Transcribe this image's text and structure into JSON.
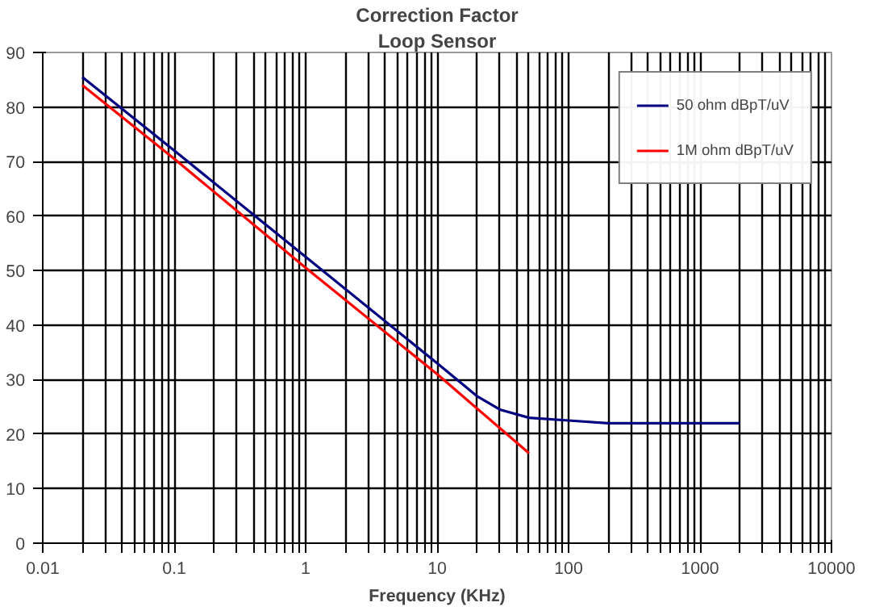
{
  "chart_data": {
    "type": "line",
    "title": "Correction Factor",
    "subtitle": "Loop Sensor",
    "xlabel": "Frequency (KHz)",
    "log": "x",
    "grid": true,
    "legend": "top right",
    "line_style": "solid",
    "marker": "none",
    "xlim": [
      0.01,
      10000
    ],
    "ylim": [
      0,
      90
    ],
    "xticks": [
      {
        "value": 0.01,
        "label": "0.01"
      },
      {
        "value": 0.02,
        "label": null
      },
      {
        "value": 0.03,
        "label": null
      },
      {
        "value": 0.04,
        "label": null
      },
      {
        "value": 0.05,
        "label": null
      },
      {
        "value": 0.06,
        "label": null
      },
      {
        "value": 0.07,
        "label": null
      },
      {
        "value": 0.08,
        "label": null
      },
      {
        "value": 0.09,
        "label": null
      },
      {
        "value": 0.1,
        "label": "0.1"
      },
      {
        "value": 0.2,
        "label": null
      },
      {
        "value": 0.3,
        "label": null
      },
      {
        "value": 0.4,
        "label": null
      },
      {
        "value": 0.5,
        "label": null
      },
      {
        "value": 0.6,
        "label": null
      },
      {
        "value": 0.7,
        "label": null
      },
      {
        "value": 0.8,
        "label": null
      },
      {
        "value": 0.9,
        "label": null
      },
      {
        "value": 1,
        "label": "1"
      },
      {
        "value": 2,
        "label": null
      },
      {
        "value": 3,
        "label": null
      },
      {
        "value": 4,
        "label": null
      },
      {
        "value": 5,
        "label": null
      },
      {
        "value": 6,
        "label": null
      },
      {
        "value": 7,
        "label": null
      },
      {
        "value": 8,
        "label": null
      },
      {
        "value": 9,
        "label": null
      },
      {
        "value": 10,
        "label": "10"
      },
      {
        "value": 20,
        "label": null
      },
      {
        "value": 30,
        "label": null
      },
      {
        "value": 40,
        "label": null
      },
      {
        "value": 50,
        "label": null
      },
      {
        "value": 60,
        "label": null
      },
      {
        "value": 70,
        "label": null
      },
      {
        "value": 80,
        "label": null
      },
      {
        "value": 90,
        "label": null
      },
      {
        "value": 100,
        "label": "100"
      },
      {
        "value": 200,
        "label": null
      },
      {
        "value": 300,
        "label": null
      },
      {
        "value": 400,
        "label": null
      },
      {
        "value": 500,
        "label": null
      },
      {
        "value": 600,
        "label": null
      },
      {
        "value": 700,
        "label": null
      },
      {
        "value": 800,
        "label": null
      },
      {
        "value": 900,
        "label": null
      },
      {
        "value": 1000,
        "label": "1000"
      },
      {
        "value": 2000,
        "label": null
      },
      {
        "value": 3000,
        "label": null
      },
      {
        "value": 4000,
        "label": null
      },
      {
        "value": 5000,
        "label": null
      },
      {
        "value": 6000,
        "label": null
      },
      {
        "value": 7000,
        "label": null
      },
      {
        "value": 8000,
        "label": null
      },
      {
        "value": 9000,
        "label": null
      },
      {
        "value": 10000,
        "label": "10000"
      }
    ],
    "yticks": [
      0,
      10,
      20,
      30,
      40,
      50,
      60,
      70,
      80,
      90
    ],
    "series": [
      {
        "name": "50 ohm dBpT/uV",
        "color": "#000080",
        "x": [
          0.02,
          0.1,
          1,
          10,
          20,
          30,
          50,
          100,
          200,
          2000
        ],
        "values": [
          85.5,
          72,
          52.5,
          33,
          27,
          24.5,
          23,
          22.5,
          22,
          22
        ]
      },
      {
        "name": "1M ohm dBpT/uV",
        "color": "#ff0000",
        "x": [
          0.02,
          0.1,
          1,
          10,
          50
        ],
        "values": [
          84,
          70.5,
          50.5,
          31,
          16.5
        ]
      }
    ]
  }
}
